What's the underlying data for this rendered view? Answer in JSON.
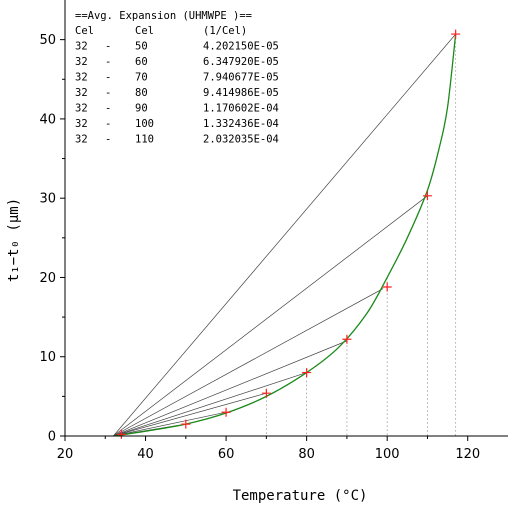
{
  "chart_data": {
    "type": "line",
    "xlabel": "Temperature (°C)",
    "ylabel": "t₁−t₀ (μm)",
    "xlim": [
      20,
      130
    ],
    "ylim": [
      0,
      55
    ],
    "x_ticks": [
      20,
      40,
      60,
      80,
      100,
      120
    ],
    "y_ticks": [
      0,
      10,
      20,
      30,
      40,
      50
    ],
    "grid": false,
    "curve_color": "#1a8a1a",
    "marker_color": "#ff2020",
    "chord_color": "#444444",
    "measured_points": [
      {
        "x": 34,
        "y": 0.2
      },
      {
        "x": 50,
        "y": 1.5
      },
      {
        "x": 60,
        "y": 3.0
      },
      {
        "x": 70,
        "y": 5.4
      },
      {
        "x": 80,
        "y": 8.0
      },
      {
        "x": 90,
        "y": 12.2
      },
      {
        "x": 100,
        "y": 18.8
      },
      {
        "x": 110,
        "y": 30.3
      },
      {
        "x": 117,
        "y": 50.7
      }
    ],
    "fit_curve": [
      [
        32,
        0
      ],
      [
        40,
        0.6
      ],
      [
        50,
        1.5
      ],
      [
        60,
        2.9
      ],
      [
        70,
        5.0
      ],
      [
        80,
        8.0
      ],
      [
        88,
        11.2
      ],
      [
        95,
        15.5
      ],
      [
        100,
        20.0
      ],
      [
        105,
        25.0
      ],
      [
        110,
        31.0
      ],
      [
        113,
        36.5
      ],
      [
        115,
        41.5
      ],
      [
        117,
        50.7
      ]
    ],
    "chords": {
      "start": {
        "x": 32,
        "y": 0
      },
      "ends": [
        {
          "x": 117,
          "y": 50.7
        },
        {
          "x": 110,
          "y": 30.3
        },
        {
          "x": 99,
          "y": 18.6
        },
        {
          "x": 90,
          "y": 12.0
        },
        {
          "x": 80,
          "y": 8.0
        },
        {
          "x": 70,
          "y": 5.4
        },
        {
          "x": 60,
          "y": 3.0
        },
        {
          "x": 50,
          "y": 1.5
        }
      ]
    },
    "dotted_verticals": [
      70,
      80,
      90,
      100,
      110,
      117
    ],
    "annotation": {
      "title": "==Avg. Expansion (UHMWPE )==",
      "header": [
        "Cel",
        "Cel",
        "(1/Cel)"
      ],
      "rows": [
        [
          "32",
          "-",
          "50",
          "4.202150E-05"
        ],
        [
          "32",
          "-",
          "60",
          "6.347920E-05"
        ],
        [
          "32",
          "-",
          "70",
          "7.940677E-05"
        ],
        [
          "32",
          "-",
          "80",
          "9.414986E-05"
        ],
        [
          "32",
          "-",
          "90",
          "1.170602E-04"
        ],
        [
          "32",
          "-",
          "100",
          "1.332436E-04"
        ],
        [
          "32",
          "-",
          "110",
          "2.032035E-04"
        ]
      ]
    }
  }
}
